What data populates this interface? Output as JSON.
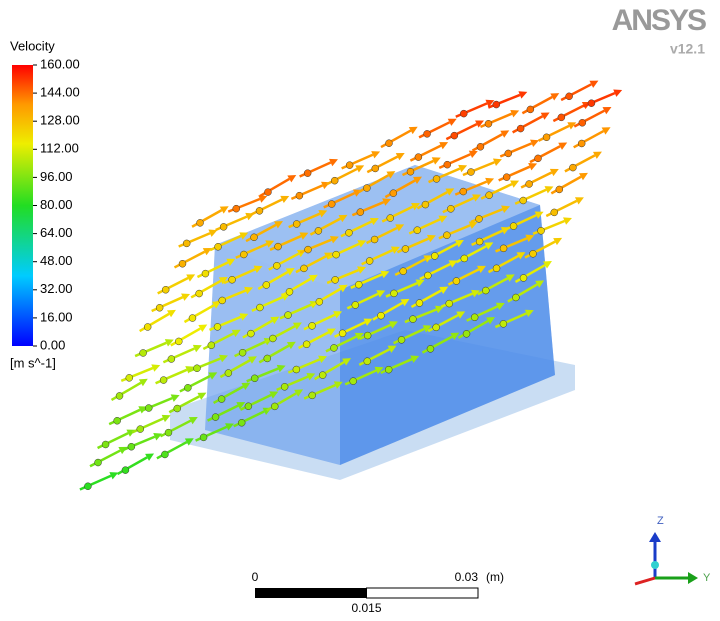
{
  "legend": {
    "title": "Velocity",
    "unit": "[m s^-1]",
    "range": [
      0,
      160
    ],
    "ticks": [
      {
        "value": 160,
        "label": "160.00"
      },
      {
        "value": 144,
        "label": "144.00"
      },
      {
        "value": 128,
        "label": "128.00"
      },
      {
        "value": 112,
        "label": "112.00"
      },
      {
        "value": 96,
        "label": "96.00"
      },
      {
        "value": 80,
        "label": "80.00"
      },
      {
        "value": 64,
        "label": "64.00"
      },
      {
        "value": 48,
        "label": "48.00"
      },
      {
        "value": 32,
        "label": "32.00"
      },
      {
        "value": 16,
        "label": "16.00"
      },
      {
        "value": 0,
        "label": "0.00"
      }
    ]
  },
  "logo": {
    "name": "ANSYS",
    "version": "v12.1"
  },
  "scale_bar": {
    "start": 0,
    "end": 0.03,
    "unit": "(m)",
    "middle": 0.015
  },
  "triad": {
    "z": "Z",
    "y": "Y"
  }
}
